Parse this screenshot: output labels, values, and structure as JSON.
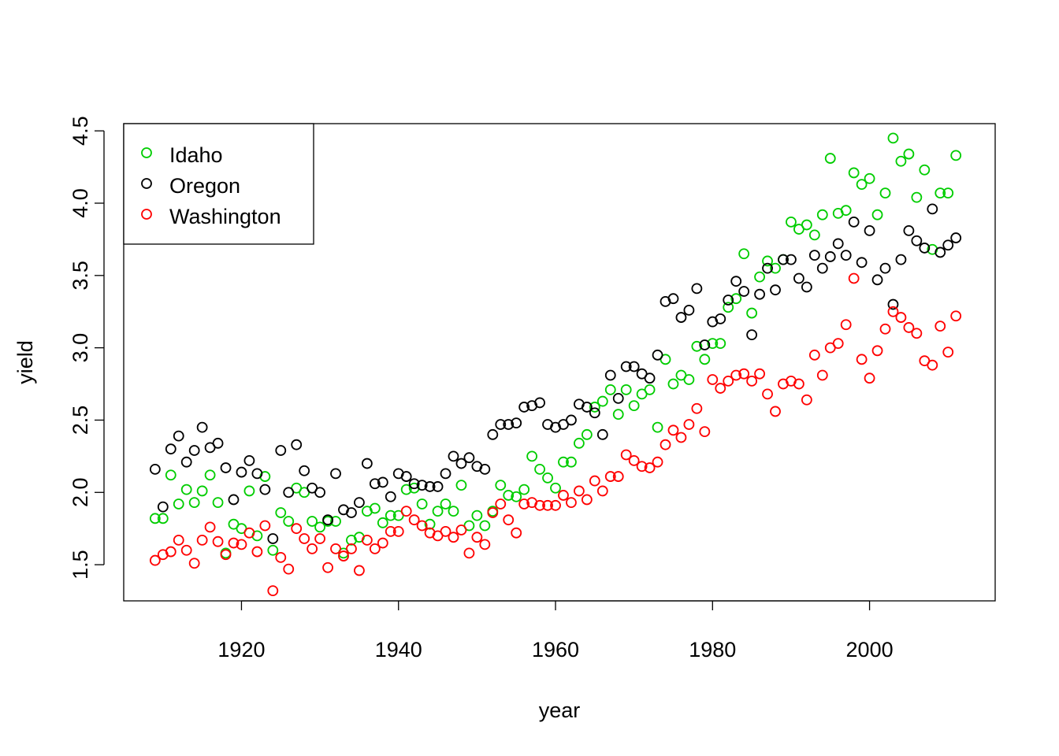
{
  "chart_data": {
    "type": "scatter",
    "title": "",
    "xlabel": "year",
    "ylabel": "yield",
    "xlim": [
      1905,
      2016
    ],
    "ylim": [
      1.25,
      4.55
    ],
    "x_ticks": [
      "1920",
      "1940",
      "1960",
      "1980",
      "2000"
    ],
    "y_ticks": [
      "1.5",
      "2.0",
      "2.5",
      "3.0",
      "3.5",
      "4.0",
      "4.5"
    ],
    "grid": false,
    "legend_position": "top-left",
    "x": [
      1909,
      1910,
      1911,
      1912,
      1913,
      1914,
      1915,
      1916,
      1917,
      1918,
      1919,
      1920,
      1921,
      1922,
      1923,
      1924,
      1925,
      1926,
      1927,
      1928,
      1929,
      1930,
      1931,
      1932,
      1933,
      1934,
      1935,
      1936,
      1937,
      1938,
      1939,
      1940,
      1941,
      1942,
      1943,
      1944,
      1945,
      1946,
      1947,
      1948,
      1949,
      1950,
      1951,
      1952,
      1953,
      1954,
      1955,
      1956,
      1957,
      1958,
      1959,
      1960,
      1961,
      1962,
      1963,
      1964,
      1965,
      1966,
      1967,
      1968,
      1969,
      1970,
      1971,
      1972,
      1973,
      1974,
      1975,
      1976,
      1977,
      1978,
      1979,
      1980,
      1981,
      1982,
      1983,
      1984,
      1985,
      1986,
      1987,
      1988,
      1989,
      1990,
      1991,
      1992,
      1993,
      1994,
      1995,
      1996,
      1997,
      1998,
      1999,
      2000,
      2001,
      2002,
      2003,
      2004,
      2005,
      2006,
      2007,
      2008,
      2009,
      2010,
      2011
    ],
    "series": [
      {
        "name": "Idaho",
        "color": "#00CD00",
        "values": [
          1.82,
          1.82,
          2.12,
          1.92,
          2.02,
          1.93,
          2.01,
          2.12,
          1.93,
          1.58,
          1.78,
          1.75,
          2.01,
          1.7,
          2.11,
          1.6,
          1.86,
          1.8,
          2.03,
          2.0,
          1.8,
          1.76,
          1.8,
          1.8,
          1.58,
          1.67,
          1.69,
          1.87,
          1.89,
          1.79,
          1.84,
          1.84,
          2.02,
          2.03,
          1.92,
          1.78,
          1.87,
          1.92,
          1.87,
          2.05,
          1.77,
          1.84,
          1.77,
          1.87,
          2.05,
          1.98,
          1.97,
          2.02,
          2.25,
          2.16,
          2.1,
          2.03,
          2.21,
          2.21,
          2.34,
          2.4,
          2.59,
          2.63,
          2.71,
          2.54,
          2.71,
          2.6,
          2.68,
          2.71,
          2.45,
          2.92,
          2.75,
          2.81,
          2.78,
          3.01,
          2.92,
          3.03,
          3.03,
          3.28,
          3.34,
          3.65,
          3.24,
          3.49,
          3.6,
          3.55,
          3.61,
          3.87,
          3.82,
          3.85,
          3.78,
          3.92,
          4.31,
          3.93,
          3.95,
          4.21,
          4.13,
          4.17,
          3.92,
          4.07,
          4.45,
          4.29,
          4.34,
          4.04,
          4.23,
          3.68,
          4.07,
          4.07,
          4.33
        ]
      },
      {
        "name": "Oregon",
        "color": "#000000",
        "values": [
          2.16,
          1.9,
          2.3,
          2.39,
          2.21,
          2.29,
          2.45,
          2.31,
          2.34,
          2.17,
          1.95,
          2.14,
          2.22,
          2.13,
          2.02,
          1.68,
          2.29,
          2.0,
          2.33,
          2.15,
          2.03,
          2.0,
          1.81,
          2.13,
          1.88,
          1.86,
          1.93,
          2.2,
          2.06,
          2.07,
          1.97,
          2.13,
          2.11,
          2.06,
          2.05,
          2.04,
          2.04,
          2.13,
          2.25,
          2.2,
          2.24,
          2.18,
          2.16,
          2.4,
          2.47,
          2.47,
          2.48,
          2.59,
          2.6,
          2.62,
          2.47,
          2.45,
          2.47,
          2.5,
          2.61,
          2.59,
          2.55,
          2.4,
          2.81,
          2.65,
          2.87,
          2.87,
          2.82,
          2.79,
          2.95,
          3.32,
          3.34,
          3.21,
          3.26,
          3.41,
          3.02,
          3.18,
          3.2,
          3.33,
          3.46,
          3.39,
          3.09,
          3.37,
          3.55,
          3.4,
          3.61,
          3.61,
          3.48,
          3.42,
          3.64,
          3.55,
          3.63,
          3.72,
          3.64,
          3.87,
          3.59,
          3.81,
          3.47,
          3.55,
          3.3,
          3.61,
          3.81,
          3.74,
          3.69,
          3.96,
          3.66,
          3.71,
          3.76
        ]
      },
      {
        "name": "Washington",
        "color": "#FF0000",
        "values": [
          1.53,
          1.57,
          1.59,
          1.67,
          1.6,
          1.51,
          1.67,
          1.76,
          1.66,
          1.57,
          1.65,
          1.64,
          1.72,
          1.59,
          1.77,
          1.32,
          1.55,
          1.47,
          1.75,
          1.68,
          1.61,
          1.68,
          1.48,
          1.61,
          1.56,
          1.61,
          1.46,
          1.67,
          1.61,
          1.65,
          1.73,
          1.73,
          1.87,
          1.81,
          1.77,
          1.72,
          1.7,
          1.73,
          1.69,
          1.74,
          1.58,
          1.69,
          1.64,
          1.86,
          1.92,
          1.81,
          1.72,
          1.92,
          1.93,
          1.91,
          1.91,
          1.91,
          1.98,
          1.93,
          2.01,
          1.95,
          2.08,
          2.01,
          2.11,
          2.11,
          2.26,
          2.22,
          2.18,
          2.17,
          2.21,
          2.33,
          2.43,
          2.38,
          2.47,
          2.58,
          2.42,
          2.78,
          2.72,
          2.77,
          2.81,
          2.82,
          2.77,
          2.82,
          2.68,
          2.56,
          2.75,
          2.77,
          2.75,
          2.64,
          2.95,
          2.81,
          3.0,
          3.03,
          3.16,
          3.48,
          2.92,
          2.79,
          2.98,
          3.13,
          3.25,
          3.21,
          3.14,
          3.1,
          2.91,
          2.88,
          3.15,
          2.97,
          3.22
        ]
      }
    ]
  }
}
